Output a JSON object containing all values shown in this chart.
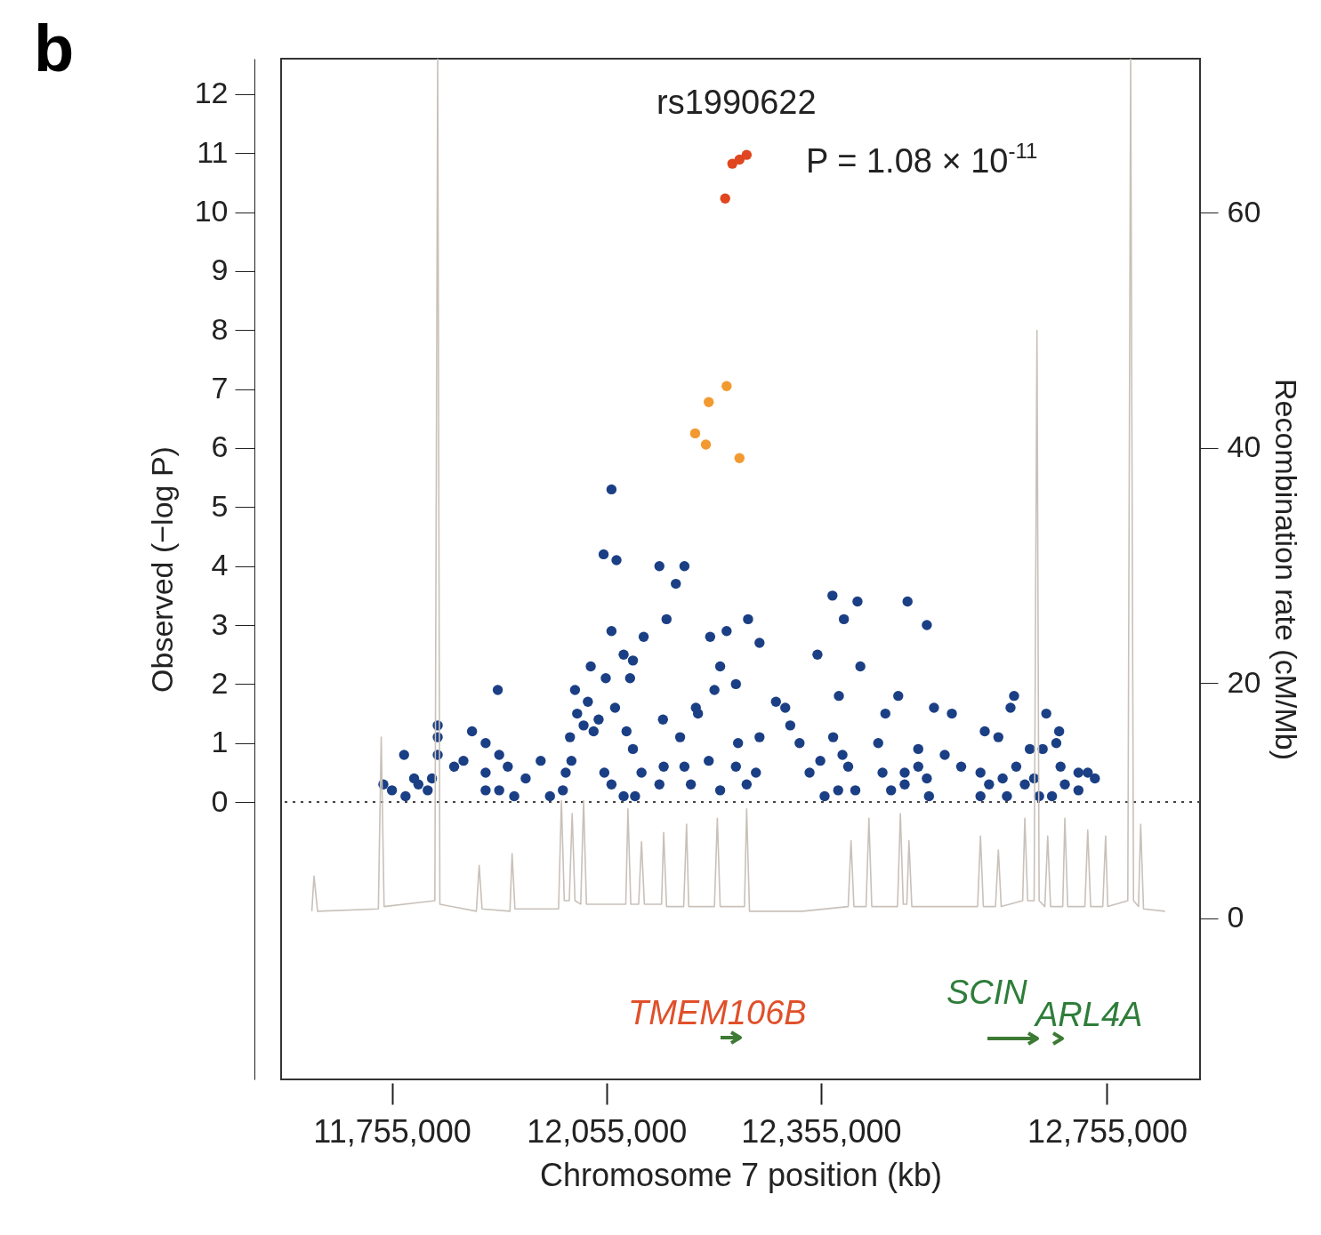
{
  "chart_data": {
    "type": "scatter",
    "xlabel": "Chromosome 7 position (kb)",
    "ylabel": "Observed (−log P)",
    "y2label": "Recombination rate (cM/Mb)",
    "annotations": [
      "b",
      "rs1990622",
      "P = 1.08 × 10$^{-11}$",
      "TMEM106B",
      "SCIN",
      "ARL4A"
    ],
    "xlim": [
      11600000,
      12885000
    ],
    "xticks": [
      {
        "value": 11755000,
        "label": "11,755,000"
      },
      {
        "value": 12055000,
        "label": "12,055,000"
      },
      {
        "value": 12355000,
        "label": "12,355,000"
      },
      {
        "value": 12755000,
        "label": "12,755,000"
      }
    ],
    "ylim": [
      -4.7,
      12.6
    ],
    "yticks": [
      0,
      1,
      2,
      3,
      4,
      5,
      6,
      7,
      8,
      9,
      10,
      11,
      12
    ],
    "y2lim": [
      -13.7,
      73.1
    ],
    "y2ticks": [
      0,
      20,
      40,
      60
    ],
    "ref_lines": [
      {
        "axis": "y",
        "value": 0,
        "line_style": "dotted"
      }
    ],
    "series": [
      {
        "type": "line",
        "axis": "y2",
        "color": "#c9c1b9",
        "x": [
          11643000,
          11646000,
          11651000,
          11736000,
          11740000,
          11744000,
          11815000,
          11819000,
          11822000,
          11873000,
          11877000,
          11881000,
          11920000,
          11923000,
          11927000,
          11988000,
          11992000,
          11996000,
          12003000,
          12007000,
          12011000,
          12019000,
          12023000,
          12027000,
          12082000,
          12085000,
          12089000,
          12100000,
          12104000,
          12108000,
          12132000,
          12135000,
          12139000,
          12163000,
          12167000,
          12170000,
          12206000,
          12210000,
          12214000,
          12248000,
          12251000,
          12255000,
          12329000,
          12393000,
          12397000,
          12401000,
          12418000,
          12422000,
          12426000,
          12462000,
          12466000,
          12470000,
          12475000,
          12478000,
          12482000,
          12574000,
          12578000,
          12582000,
          12599000,
          12603000,
          12607000,
          12637000,
          12640000,
          12644000,
          12653000,
          12657000,
          12660000,
          12668000,
          12672000,
          12676000,
          12693000,
          12696000,
          12700000,
          12724000,
          12728000,
          12732000,
          12749000,
          12753000,
          12756000,
          12784000,
          12788000,
          12792000,
          12799000,
          12802000,
          12806000,
          12836000
        ],
        "values": [
          0.6,
          3.6,
          0.6,
          0.8,
          15.4,
          1.0,
          1.5,
          73.1,
          1.2,
          0.6,
          4.5,
          0.8,
          0.6,
          5.5,
          0.8,
          0.8,
          10.0,
          1.5,
          1.5,
          8.9,
          1.5,
          1.2,
          10.0,
          1.2,
          1.2,
          9.3,
          1.2,
          1.2,
          6.5,
          1.2,
          1.2,
          7.3,
          1.0,
          1.0,
          8.0,
          1.0,
          1.0,
          8.5,
          1.0,
          1.0,
          9.3,
          0.6,
          0.6,
          1.0,
          6.6,
          1.0,
          1.0,
          8.5,
          1.0,
          1.0,
          8.9,
          1.2,
          1.2,
          6.6,
          1.0,
          1.0,
          7.0,
          1.0,
          1.0,
          5.8,
          1.0,
          1.5,
          8.5,
          1.5,
          1.5,
          50.0,
          1.5,
          1.0,
          7.0,
          1.0,
          1.0,
          8.5,
          1.0,
          1.0,
          7.5,
          1.0,
          1.0,
          7.0,
          1.0,
          1.5,
          73.1,
          1.5,
          1.0,
          8.0,
          0.8,
          0.6
        ]
      },
      {
        "type": "scatter",
        "marker": "circle",
        "color": "#1b3f85",
        "x": [
          12062000,
          12051000,
          12069000,
          12129000,
          12164000,
          12152000,
          12062000,
          12139000,
          12107000,
          12079000,
          12092000,
          12033000,
          12054000,
          12088000,
          12200000,
          12223000,
          12253000,
          12269000,
          12214000,
          12206000,
          12236000,
          12180000,
          12183000,
          12134000,
          12371000,
          12406000,
          12387000,
          12476000,
          12503000,
          12350000,
          12410000,
          12380000,
          12463000,
          12625000,
          12620000,
          11903000,
          12292000,
          12305000,
          12513000,
          12538000,
          12670000,
          12688000,
          12011000,
          12029000,
          12014000,
          12023000,
          12044000,
          12004000,
          12037000,
          12067000,
          12083000,
          12092000,
          11819000,
          11819000,
          11819000,
          11772000,
          11867000,
          11886000,
          11905000,
          11917000,
          11855000,
          11842000,
          11743000,
          11755000,
          11774000,
          11792000,
          11805000,
          11786000,
          11811000,
          11886000,
          11886000,
          11905000,
          11926000,
          11942000,
          11963000,
          11976000,
          11994000,
          11998000,
          12006000,
          12079000,
          12095000,
          12062000,
          12052000,
          12104000,
          12129000,
          12135000,
          12158000,
          12164000,
          12173000,
          12198000,
          12214000,
          12236000,
          12239000,
          12269000,
          12264000,
          12251000,
          12312000,
          12325000,
          12354000,
          12339000,
          12372000,
          12385000,
          12393000,
          12379000,
          12360000,
          12403000,
          12435000,
          12445000,
          12441000,
          12453000,
          12472000,
          12491000,
          12491000,
          12503000,
          12472000,
          12528000,
          12551000,
          12506000,
          12584000,
          12603000,
          12578000,
          12590000,
          12615000,
          12628000,
          12647000,
          12665000,
          12640000,
          12660000,
          12678000,
          12684000,
          12690000,
          12696000,
          12715000,
          12728000,
          12738000,
          12715000,
          12609000,
          12653000,
          12578000
        ],
        "values": [
          5.3,
          4.2,
          4.1,
          4.0,
          4.0,
          3.7,
          2.9,
          3.1,
          2.8,
          2.5,
          2.4,
          2.3,
          2.1,
          2.1,
          2.8,
          2.9,
          3.1,
          2.7,
          2.3,
          1.9,
          2.0,
          1.6,
          1.5,
          1.4,
          3.5,
          3.4,
          3.1,
          3.4,
          3.0,
          2.5,
          2.3,
          1.8,
          1.8,
          1.8,
          1.6,
          1.9,
          1.7,
          1.6,
          1.6,
          1.5,
          1.5,
          1.2,
          1.9,
          1.7,
          1.5,
          1.3,
          1.4,
          1.1,
          1.2,
          1.6,
          1.2,
          0.9,
          1.3,
          1.1,
          0.8,
          0.8,
          1.2,
          1.0,
          0.8,
          0.6,
          0.7,
          0.6,
          0.3,
          0.2,
          0.1,
          0.3,
          0.2,
          0.4,
          0.4,
          0.5,
          0.2,
          0.2,
          0.1,
          0.4,
          0.7,
          0.1,
          0.2,
          0.5,
          0.7,
          0.1,
          0.1,
          0.3,
          0.5,
          0.5,
          0.3,
          0.6,
          1.1,
          0.6,
          0.3,
          0.7,
          0.2,
          0.6,
          1.0,
          1.1,
          0.5,
          0.3,
          1.3,
          1.0,
          0.7,
          0.5,
          1.1,
          0.8,
          0.6,
          0.2,
          0.1,
          0.2,
          1.0,
          1.5,
          0.5,
          0.2,
          0.3,
          0.6,
          0.9,
          0.4,
          0.5,
          0.8,
          0.6,
          0.1,
          1.2,
          1.1,
          0.5,
          0.3,
          0.1,
          0.6,
          0.9,
          0.9,
          0.3,
          0.1,
          0.1,
          1.0,
          0.6,
          0.3,
          0.2,
          0.5,
          0.4,
          0.5,
          0.4,
          0.4,
          0.1
        ]
      },
      {
        "type": "scatter",
        "marker": "circle",
        "color": "#f29a30",
        "x": [
          12179000,
          12194000,
          12198000,
          12223000,
          12241000
        ],
        "values": [
          6.25,
          6.06,
          6.78,
          7.05,
          5.83
        ]
      },
      {
        "type": "scatter",
        "marker": "circle",
        "color": "#e0461f",
        "x": [
          12221000,
          12231000,
          12241000,
          12251000
        ],
        "values": [
          10.23,
          10.82,
          10.89,
          10.97
        ]
      }
    ]
  }
}
